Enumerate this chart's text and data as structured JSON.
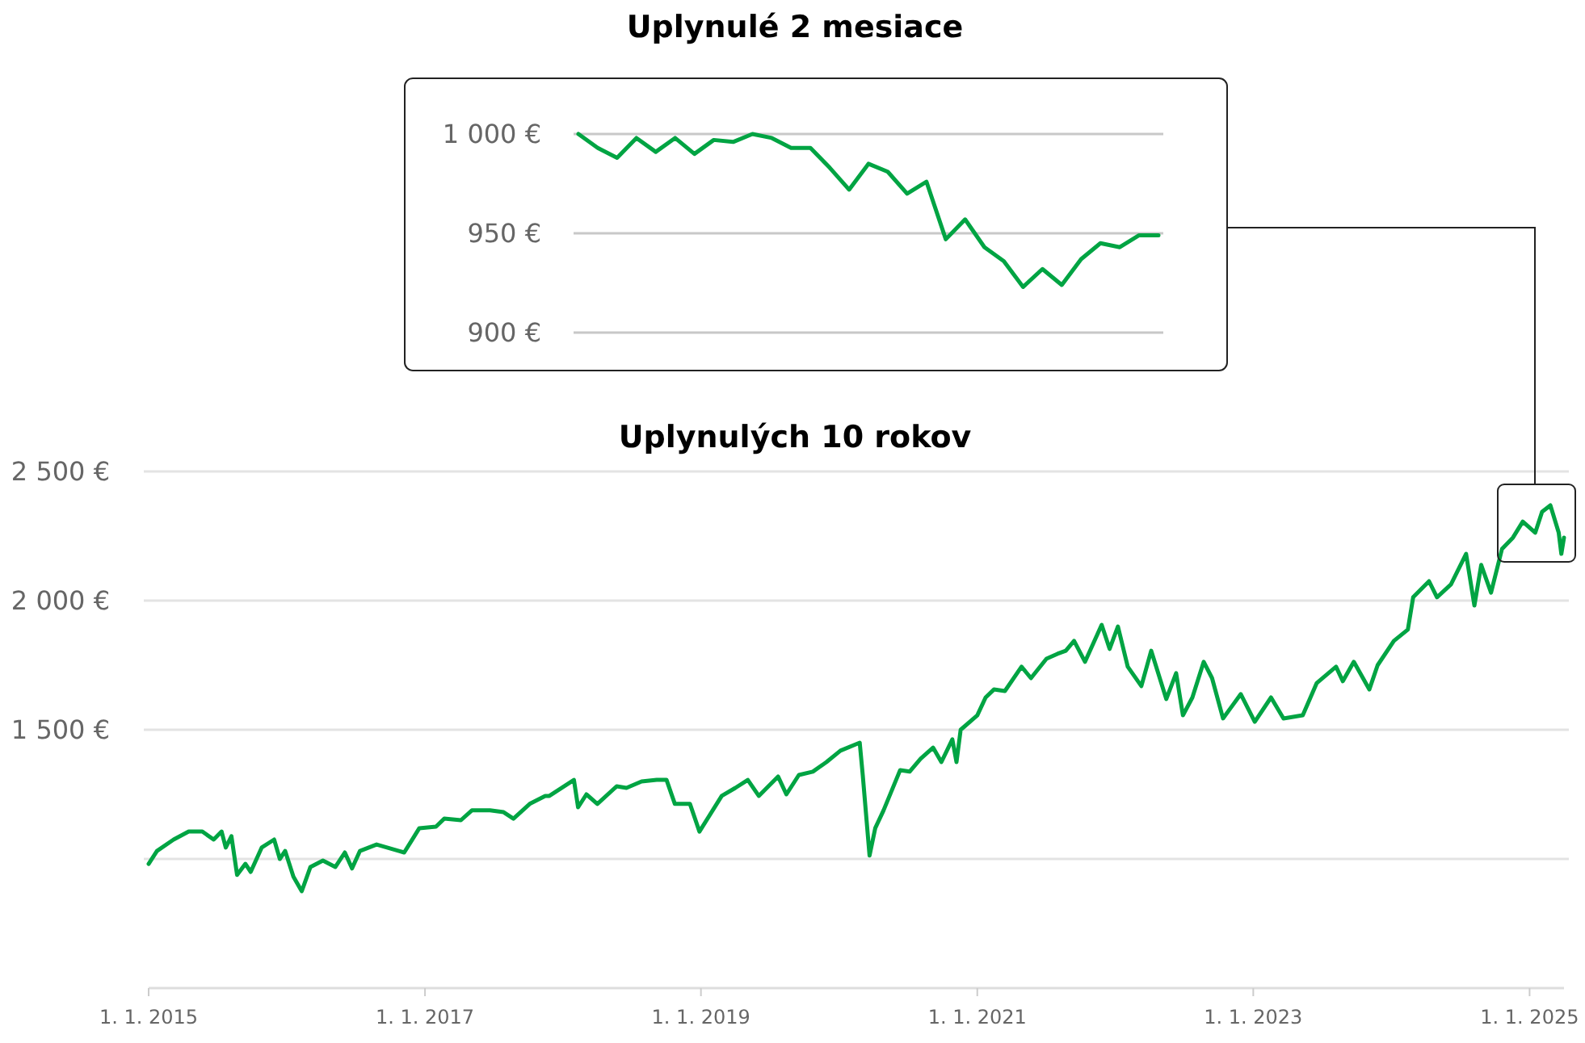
{
  "chart_data": [
    {
      "type": "line",
      "title": "Uplynulé 2 mesiace",
      "categories": [
        null,
        null,
        null,
        null,
        null,
        null,
        null,
        null,
        null,
        null,
        null,
        null,
        null,
        null,
        null,
        null,
        null,
        null,
        null,
        null,
        null,
        null,
        null,
        null,
        null,
        null,
        null,
        null,
        null,
        null,
        null
      ],
      "series": [
        {
          "color": "#00a443",
          "values": [
            1000,
            993,
            988,
            998,
            991,
            998,
            990,
            997,
            996,
            1000,
            998,
            993,
            993,
            983,
            972,
            985,
            981,
            970,
            976,
            947,
            957,
            943,
            936,
            923,
            932,
            924,
            937,
            945,
            943,
            949,
            949
          ]
        }
      ],
      "ylim": [
        900,
        1000
      ],
      "yticks": [
        {
          "value": 900,
          "label": "900 €"
        },
        {
          "value": 950,
          "label": "950 €"
        },
        {
          "value": 1000,
          "label": "1 000 €"
        }
      ],
      "grid": "y",
      "tick_labels": "y"
    },
    {
      "type": "line",
      "title": "Uplynulých 10 rokov",
      "x": [
        "2015-01-01",
        "2015-01-23",
        "2015-03-08",
        "2015-04-17",
        "2015-05-23",
        "2015-06-22",
        "2015-07-13",
        "2015-07-24",
        "2015-08-08",
        "2015-08-23",
        "2015-09-14",
        "2015-09-28",
        "2015-10-27",
        "2015-11-29",
        "2015-12-14",
        "2015-12-28",
        "2016-01-19",
        "2016-02-10",
        "2016-03-04",
        "2016-04-06",
        "2016-05-09",
        "2016-06-03",
        "2016-06-22",
        "2016-07-13",
        "2016-08-26",
        "2016-10-24",
        "2016-11-07",
        "2016-12-17",
        "2017-01-30",
        "2017-02-21",
        "2017-04-06",
        "2017-05-05",
        "2017-06-22",
        "2017-07-28",
        "2017-08-23",
        "2017-10-05",
        "2017-11-15",
        "2017-11-26",
        "2018-01-30",
        "2018-02-10",
        "2018-03-04",
        "2018-04-02",
        "2018-05-23",
        "2018-06-18",
        "2018-07-28",
        "2018-09-06",
        "2018-10-02",
        "2018-10-24",
        "2018-12-03",
        "2018-12-28",
        "2019-02-25",
        "2019-04-02",
        "2019-05-05",
        "2019-06-03",
        "2019-07-24",
        "2019-08-15",
        "2019-09-17",
        "2019-10-24",
        "2019-11-29",
        "2020-01-05",
        "2020-02-25",
        "2020-03-04",
        "2020-03-22",
        "2020-04-06",
        "2020-04-28",
        "2020-06-11",
        "2020-07-06",
        "2020-08-04",
        "2020-09-06",
        "2020-09-28",
        "2020-10-27",
        "2020-11-07",
        "2020-11-18",
        "2021-01-01",
        "2021-01-23",
        "2021-02-14",
        "2021-03-15",
        "2021-04-28",
        "2021-05-23",
        "2021-07-03",
        "2021-08-01",
        "2021-08-23",
        "2021-09-14",
        "2021-10-13",
        "2021-11-26",
        "2021-12-17",
        "2022-01-08",
        "2022-02-03",
        "2022-03-11",
        "2022-04-06",
        "2022-05-16",
        "2022-06-11",
        "2022-06-29",
        "2022-07-24",
        "2022-08-23",
        "2022-09-14",
        "2022-10-13",
        "2022-11-29",
        "2023-01-05",
        "2023-02-17",
        "2023-03-22",
        "2023-05-12",
        "2023-06-18",
        "2023-08-08",
        "2023-08-26",
        "2023-09-24",
        "2023-11-04",
        "2023-11-26",
        "2024-01-08",
        "2024-02-14",
        "2024-02-28",
        "2024-04-10",
        "2024-05-01",
        "2024-06-07",
        "2024-07-17",
        "2024-08-08",
        "2024-08-26",
        "2024-09-21",
        "2024-10-20",
        "2024-11-18",
        "2024-12-14",
        "2025-01-16",
        "2025-02-03",
        "2025-02-25",
        "2025-03-19",
        "2025-03-26",
        "2025-04-02"
      ],
      "series": [
        {
          "color": "#00a443",
          "values": [
            981,
            1031,
            1075,
            1106,
            1106,
            1075,
            1106,
            1044,
            1088,
            938,
            981,
            950,
            1044,
            1075,
            1000,
            1031,
            931,
            875,
            969,
            994,
            969,
            1025,
            963,
            1031,
            1056,
            1031,
            1025,
            1119,
            1125,
            1156,
            1150,
            1188,
            1188,
            1181,
            1156,
            1213,
            1244,
            1244,
            1306,
            1200,
            1250,
            1213,
            1281,
            1275,
            1300,
            1306,
            1306,
            1213,
            1213,
            1106,
            1244,
            1275,
            1306,
            1244,
            1319,
            1250,
            1325,
            1338,
            1375,
            1419,
            1450,
            1325,
            1013,
            1119,
            1188,
            1344,
            1338,
            1388,
            1431,
            1375,
            1463,
            1375,
            1500,
            1556,
            1625,
            1656,
            1650,
            1744,
            1700,
            1775,
            1794,
            1806,
            1844,
            1763,
            1906,
            1813,
            1900,
            1744,
            1669,
            1806,
            1619,
            1719,
            1556,
            1625,
            1763,
            1700,
            1544,
            1638,
            1531,
            1625,
            1544,
            1556,
            1681,
            1744,
            1688,
            1763,
            1656,
            1750,
            1844,
            1888,
            2013,
            2075,
            2013,
            2063,
            2181,
            1981,
            2138,
            2031,
            2200,
            2244,
            2306,
            2263,
            2344,
            2369,
            2263,
            2181,
            2244
          ]
        }
      ],
      "xlim": [
        "2015-01-01",
        "2025-04-02"
      ],
      "xticks": [
        {
          "value": "2015-01-01",
          "label": "1. 1. 2015"
        },
        {
          "value": "2017-01-01",
          "label": "1. 1. 2017"
        },
        {
          "value": "2019-01-01",
          "label": "1. 1. 2019"
        },
        {
          "value": "2021-01-01",
          "label": "1. 1. 2021"
        },
        {
          "value": "2023-01-01",
          "label": "1. 1. 2023"
        },
        {
          "value": "2025-01-01",
          "label": "1. 1. 2025"
        }
      ],
      "ylim": [
        500,
        2500
      ],
      "yticks": [
        {
          "value": 1000,
          "label": null
        },
        {
          "value": 1500,
          "label": "1 500 €"
        },
        {
          "value": 2000,
          "label": "2 000 €"
        },
        {
          "value": 2500,
          "label": "2 500 €"
        }
      ],
      "grid": "y"
    }
  ]
}
